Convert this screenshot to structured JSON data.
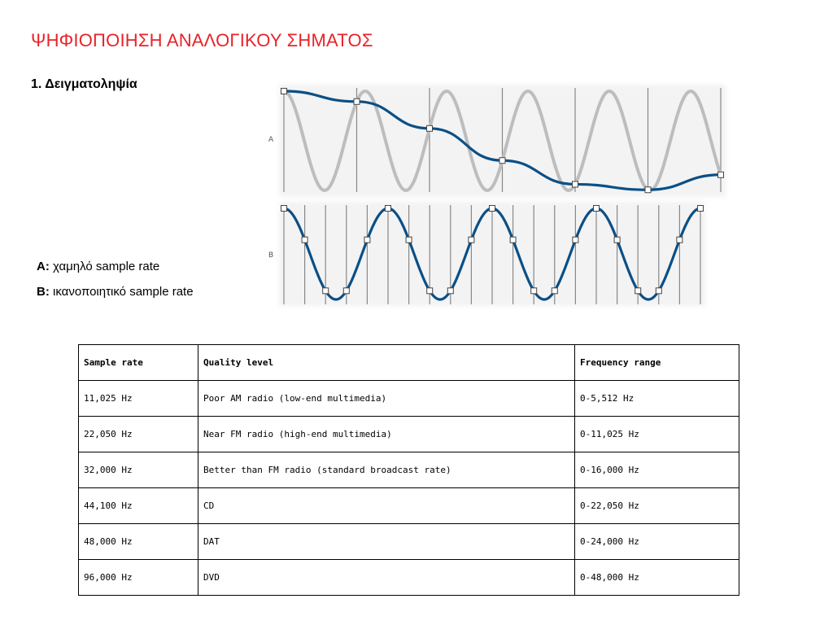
{
  "slide": {
    "title": "ΨΗΦΙΟΠΟΙΗΣΗ ΑΝΑΛΟΓΙΚΟΥ ΣΗΜΑΤΟΣ",
    "heading": "1. Δειγματοληψία"
  },
  "figure": {
    "row_a_label": "A",
    "row_b_label": "B",
    "wave_color": "#0b4f86",
    "reference_color": "#bdbdbd"
  },
  "legend": [
    {
      "key": "A:",
      "text": "χαμηλό sample rate"
    },
    {
      "key": "B:",
      "text": "ικανοποιητικό sample rate"
    }
  ],
  "table": {
    "headers": [
      "Sample rate",
      "Quality level",
      "Frequency range"
    ],
    "rows": [
      [
        "11,025 Hz",
        "Poor AM radio (low-end multimedia)",
        "0-5,512 Hz"
      ],
      [
        "22,050 Hz",
        "Near FM radio (high-end multimedia)",
        "0-11,025 Hz"
      ],
      [
        "32,000 Hz",
        "Better than FM radio (standard broadcast rate)",
        "0-16,000 Hz"
      ],
      [
        "44,100 Hz",
        "CD",
        "0-22,050 Hz"
      ],
      [
        "48,000 Hz",
        "DAT",
        "0-24,000 Hz"
      ],
      [
        "96,000 Hz",
        "DVD",
        "0-48,000 Hz"
      ]
    ]
  }
}
